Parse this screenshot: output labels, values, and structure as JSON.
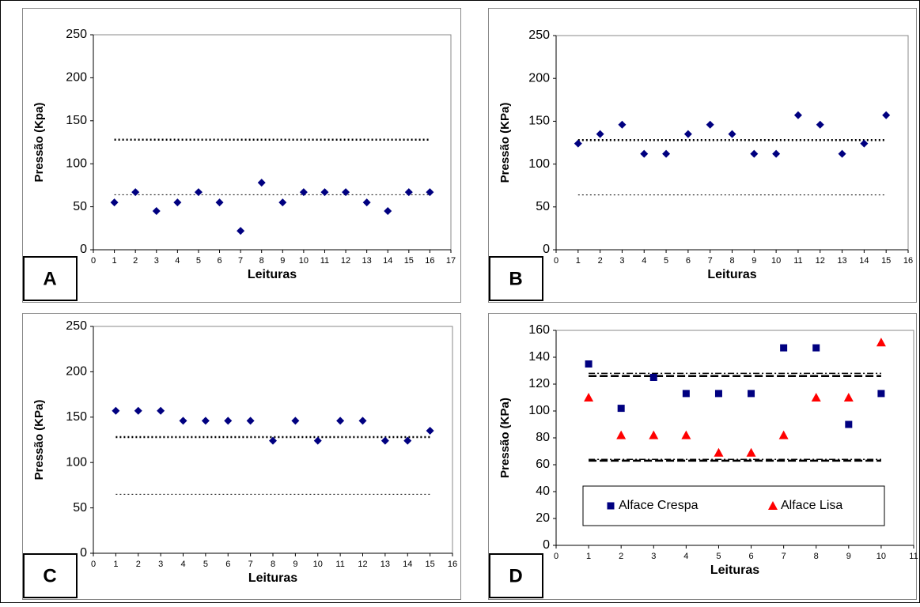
{
  "chart_data": [
    {
      "type": "scatter",
      "panel": "A",
      "ylabel": "Pressão (Kpa)",
      "xlabel": "Leituras",
      "xlim": [
        0,
        17
      ],
      "xticks": [
        0,
        1,
        2,
        3,
        4,
        5,
        6,
        7,
        8,
        9,
        10,
        11,
        12,
        13,
        14,
        15,
        16,
        17
      ],
      "ylim": [
        0,
        250
      ],
      "yticks": [
        0,
        50,
        100,
        150,
        200,
        250
      ],
      "series": [
        {
          "color": "#000080",
          "marker": "diamond",
          "x": [
            1,
            2,
            3,
            4,
            5,
            6,
            7,
            8,
            9,
            10,
            11,
            12,
            13,
            14,
            15,
            16
          ],
          "values": [
            55,
            67,
            45,
            55,
            67,
            55,
            22,
            78,
            55,
            67,
            67,
            67,
            55,
            45,
            67,
            67
          ]
        }
      ],
      "reference_lines": [
        {
          "value": 128,
          "style": "thick-dotted"
        },
        {
          "value": 64,
          "style": "thin-dotted"
        }
      ]
    },
    {
      "type": "scatter",
      "panel": "B",
      "ylabel": "Pressão (KPa)",
      "xlabel": "Leituras",
      "xlim": [
        0,
        16
      ],
      "xticks": [
        0,
        1,
        2,
        3,
        4,
        5,
        6,
        7,
        8,
        9,
        10,
        11,
        12,
        13,
        14,
        15,
        16
      ],
      "ylim": [
        0,
        250
      ],
      "yticks": [
        0,
        50,
        100,
        150,
        200,
        250
      ],
      "series": [
        {
          "color": "#000080",
          "marker": "diamond",
          "x": [
            1,
            2,
            3,
            4,
            5,
            6,
            7,
            8,
            9,
            10,
            11,
            12,
            13,
            14,
            15
          ],
          "values": [
            124,
            135,
            146,
            112,
            112,
            135,
            146,
            135,
            112,
            112,
            157,
            146,
            112,
            124,
            157
          ]
        }
      ],
      "reference_lines": [
        {
          "value": 128,
          "style": "thick-dotted"
        },
        {
          "value": 64,
          "style": "thin-dotted"
        }
      ]
    },
    {
      "type": "scatter",
      "panel": "C",
      "ylabel": "Pressão (KPa)",
      "xlabel": "Leituras",
      "xlim": [
        0,
        16
      ],
      "xticks": [
        0,
        1,
        2,
        3,
        4,
        5,
        6,
        7,
        8,
        9,
        10,
        11,
        12,
        13,
        14,
        15,
        16
      ],
      "ylim": [
        0,
        250
      ],
      "yticks": [
        0,
        50,
        100,
        150,
        200,
        250
      ],
      "series": [
        {
          "color": "#000080",
          "marker": "diamond",
          "x": [
            1,
            2,
            3,
            4,
            5,
            6,
            7,
            8,
            9,
            10,
            11,
            12,
            13,
            14,
            15
          ],
          "values": [
            157,
            157,
            157,
            146,
            146,
            146,
            146,
            124,
            146,
            124,
            146,
            146,
            124,
            124,
            135
          ]
        }
      ],
      "reference_lines": [
        {
          "value": 128,
          "style": "thick-dotted"
        },
        {
          "value": 65,
          "style": "thin-dotted"
        }
      ]
    },
    {
      "type": "scatter",
      "panel": "D",
      "ylabel": "Pressão (KPa)",
      "xlabel": "Leituras",
      "xlim": [
        0,
        11
      ],
      "xticks": [
        0,
        1,
        2,
        3,
        4,
        5,
        6,
        7,
        8,
        9,
        10,
        11
      ],
      "ylim": [
        0,
        160
      ],
      "yticks": [
        0,
        20,
        40,
        60,
        80,
        100,
        120,
        140,
        160
      ],
      "legend": "bottom",
      "series": [
        {
          "name": "Alface Crespa",
          "color": "#000080",
          "marker": "square",
          "x": [
            1,
            2,
            3,
            4,
            5,
            6,
            7,
            8,
            9,
            10
          ],
          "values": [
            135,
            102,
            125,
            113,
            113,
            113,
            147,
            147,
            90,
            113
          ]
        },
        {
          "name": "Alface Lisa",
          "color": "#ff0000",
          "marker": "triangle",
          "x": [
            1,
            2,
            3,
            4,
            5,
            6,
            7,
            8,
            9,
            10
          ],
          "values": [
            110,
            82,
            82,
            82,
            69,
            69,
            82,
            110,
            110,
            151
          ]
        }
      ],
      "reference_lines": [
        {
          "value": 128,
          "style": "dash-dot"
        },
        {
          "value": 126,
          "style": "dashed"
        },
        {
          "value": 64,
          "style": "dash-dot"
        },
        {
          "value": 63,
          "style": "dashed"
        }
      ]
    }
  ]
}
